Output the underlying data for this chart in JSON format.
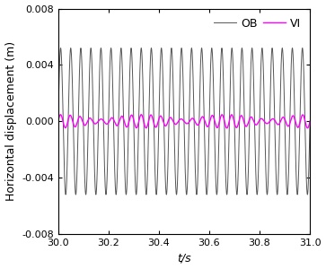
{
  "title": "",
  "xlabel": "t/s",
  "ylabel": "Horizontal displacement (m)",
  "xlim": [
    30.0,
    31.0
  ],
  "ylim": [
    -0.008,
    0.008
  ],
  "xticks": [
    30.0,
    30.2,
    30.4,
    30.6,
    30.8,
    31.0
  ],
  "yticks": [
    -0.008,
    -0.004,
    0.0,
    0.004,
    0.008
  ],
  "ytick_labels": [
    "-0.008",
    "-0.004",
    "0.000",
    "0.004",
    "0.008"
  ],
  "ob_color": "#555555",
  "vi_color": "#ff00ff",
  "ob_label": "OB",
  "vi_label": "VI",
  "ob_amplitude": 0.0052,
  "ob_frequency": 25.0,
  "vi_amplitude": 0.00032,
  "vi_frequency": 25.0,
  "vi_beat_frequency": 3.0,
  "ob_linewidth": 0.7,
  "vi_linewidth": 1.0,
  "legend_fontsize": 9,
  "tick_fontsize": 8,
  "label_fontsize": 9
}
